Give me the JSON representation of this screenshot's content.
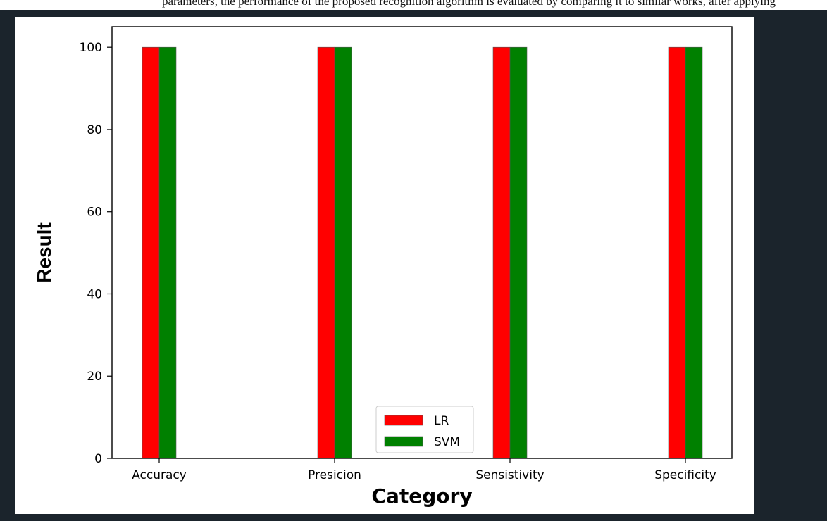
{
  "page": {
    "caption_text": "parameters, the performance of the proposed recognition algorithm is evaluated by comparing it to similar works, after applying"
  },
  "chart_data": {
    "type": "bar",
    "categories": [
      "Accuracy",
      "Presicion",
      "Sensistivity",
      "Specificity"
    ],
    "series": [
      {
        "name": "LR",
        "values": [
          100,
          100,
          100,
          100
        ],
        "color": "#ff0000"
      },
      {
        "name": "SVM",
        "values": [
          100,
          100,
          100,
          100
        ],
        "color": "#008000"
      }
    ],
    "title": "",
    "xlabel": "Category",
    "ylabel": "Result",
    "ylim": [
      0,
      105
    ],
    "yticks": [
      0,
      20,
      40,
      60,
      80,
      100
    ],
    "grid": false,
    "legend_position": "lower-center"
  }
}
